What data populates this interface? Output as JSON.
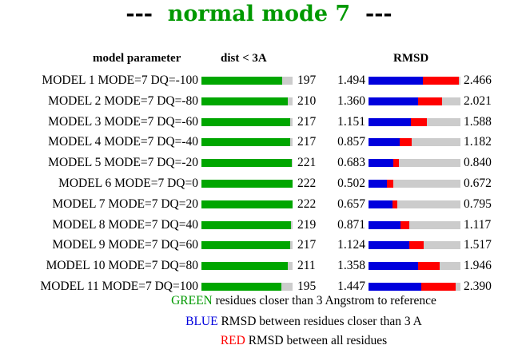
{
  "title": {
    "dash_left": "---",
    "name": "normal mode 7",
    "dash_right": "---"
  },
  "headers": {
    "param": "model parameter",
    "dist": "dist < 3A",
    "rmsd": "RMSD"
  },
  "colors": {
    "green": "#00a600",
    "blue": "#0000dd",
    "red": "#ff0000",
    "track": "#cccccc"
  },
  "scale": {
    "dist_max": 222,
    "rmsd_max": 2.466
  },
  "rows": [
    {
      "label": "MODEL 1 MODE=7 DQ=-100",
      "dist": "197",
      "rmsd_close": "1.494",
      "rmsd_all": "2.466"
    },
    {
      "label": "MODEL 2 MODE=7 DQ=-80",
      "dist": "210",
      "rmsd_close": "1.360",
      "rmsd_all": "2.021"
    },
    {
      "label": "MODEL 3 MODE=7 DQ=-60",
      "dist": "217",
      "rmsd_close": "1.151",
      "rmsd_all": "1.588"
    },
    {
      "label": "MODEL 4 MODE=7 DQ=-40",
      "dist": "217",
      "rmsd_close": "0.857",
      "rmsd_all": "1.182"
    },
    {
      "label": "MODEL 5 MODE=7 DQ=-20",
      "dist": "221",
      "rmsd_close": "0.683",
      "rmsd_all": "0.840"
    },
    {
      "label": "MODEL 6 MODE=7 DQ=0",
      "dist": "222",
      "rmsd_close": "0.502",
      "rmsd_all": "0.672"
    },
    {
      "label": "MODEL 7 MODE=7 DQ=20",
      "dist": "222",
      "rmsd_close": "0.657",
      "rmsd_all": "0.795"
    },
    {
      "label": "MODEL 8 MODE=7 DQ=40",
      "dist": "219",
      "rmsd_close": "0.871",
      "rmsd_all": "1.117"
    },
    {
      "label": "MODEL 9 MODE=7 DQ=60",
      "dist": "217",
      "rmsd_close": "1.124",
      "rmsd_all": "1.517"
    },
    {
      "label": "MODEL 10 MODE=7 DQ=80",
      "dist": "211",
      "rmsd_close": "1.358",
      "rmsd_all": "1.946"
    },
    {
      "label": "MODEL 11 MODE=7 DQ=100",
      "dist": "195",
      "rmsd_close": "1.447",
      "rmsd_all": "2.390"
    }
  ],
  "legend": {
    "green_word": "GREEN",
    "green_text": "residues closer than 3 Angstrom to reference",
    "blue_word": "BLUE",
    "blue_text": "RMSD between residues closer than 3 A",
    "red_word": "RED",
    "red_text": "RMSD between all residues"
  }
}
